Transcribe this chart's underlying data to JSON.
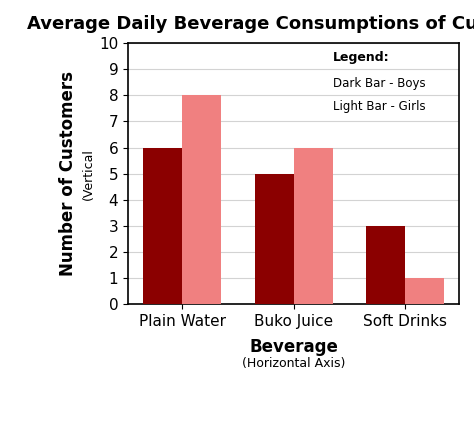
{
  "title": "Average Daily Beverage Consumptions of Customers",
  "categories": [
    "Plain Water",
    "Buko Juice",
    "Soft Drinks"
  ],
  "boys_values": [
    6,
    5,
    3
  ],
  "girls_values": [
    8,
    6,
    1
  ],
  "dark_bar_color": "#8B0000",
  "light_bar_color": "#F08080",
  "ylabel_main": "Number of Customers",
  "ylabel_sub": "(Vertical",
  "xlabel_main": "Beverage",
  "xlabel_sub": "(Horizontal Axis)",
  "ylim": [
    0,
    10
  ],
  "yticks": [
    0,
    1,
    2,
    3,
    4,
    5,
    6,
    7,
    8,
    9,
    10
  ],
  "legend_title": "Legend:",
  "legend_dark": "Dark Bar - Boys",
  "legend_light": "Light Bar - Girls",
  "background_color": "#ffffff",
  "bar_width": 0.35,
  "title_fontsize": 13,
  "axis_label_fontsize": 12,
  "tick_fontsize": 11
}
